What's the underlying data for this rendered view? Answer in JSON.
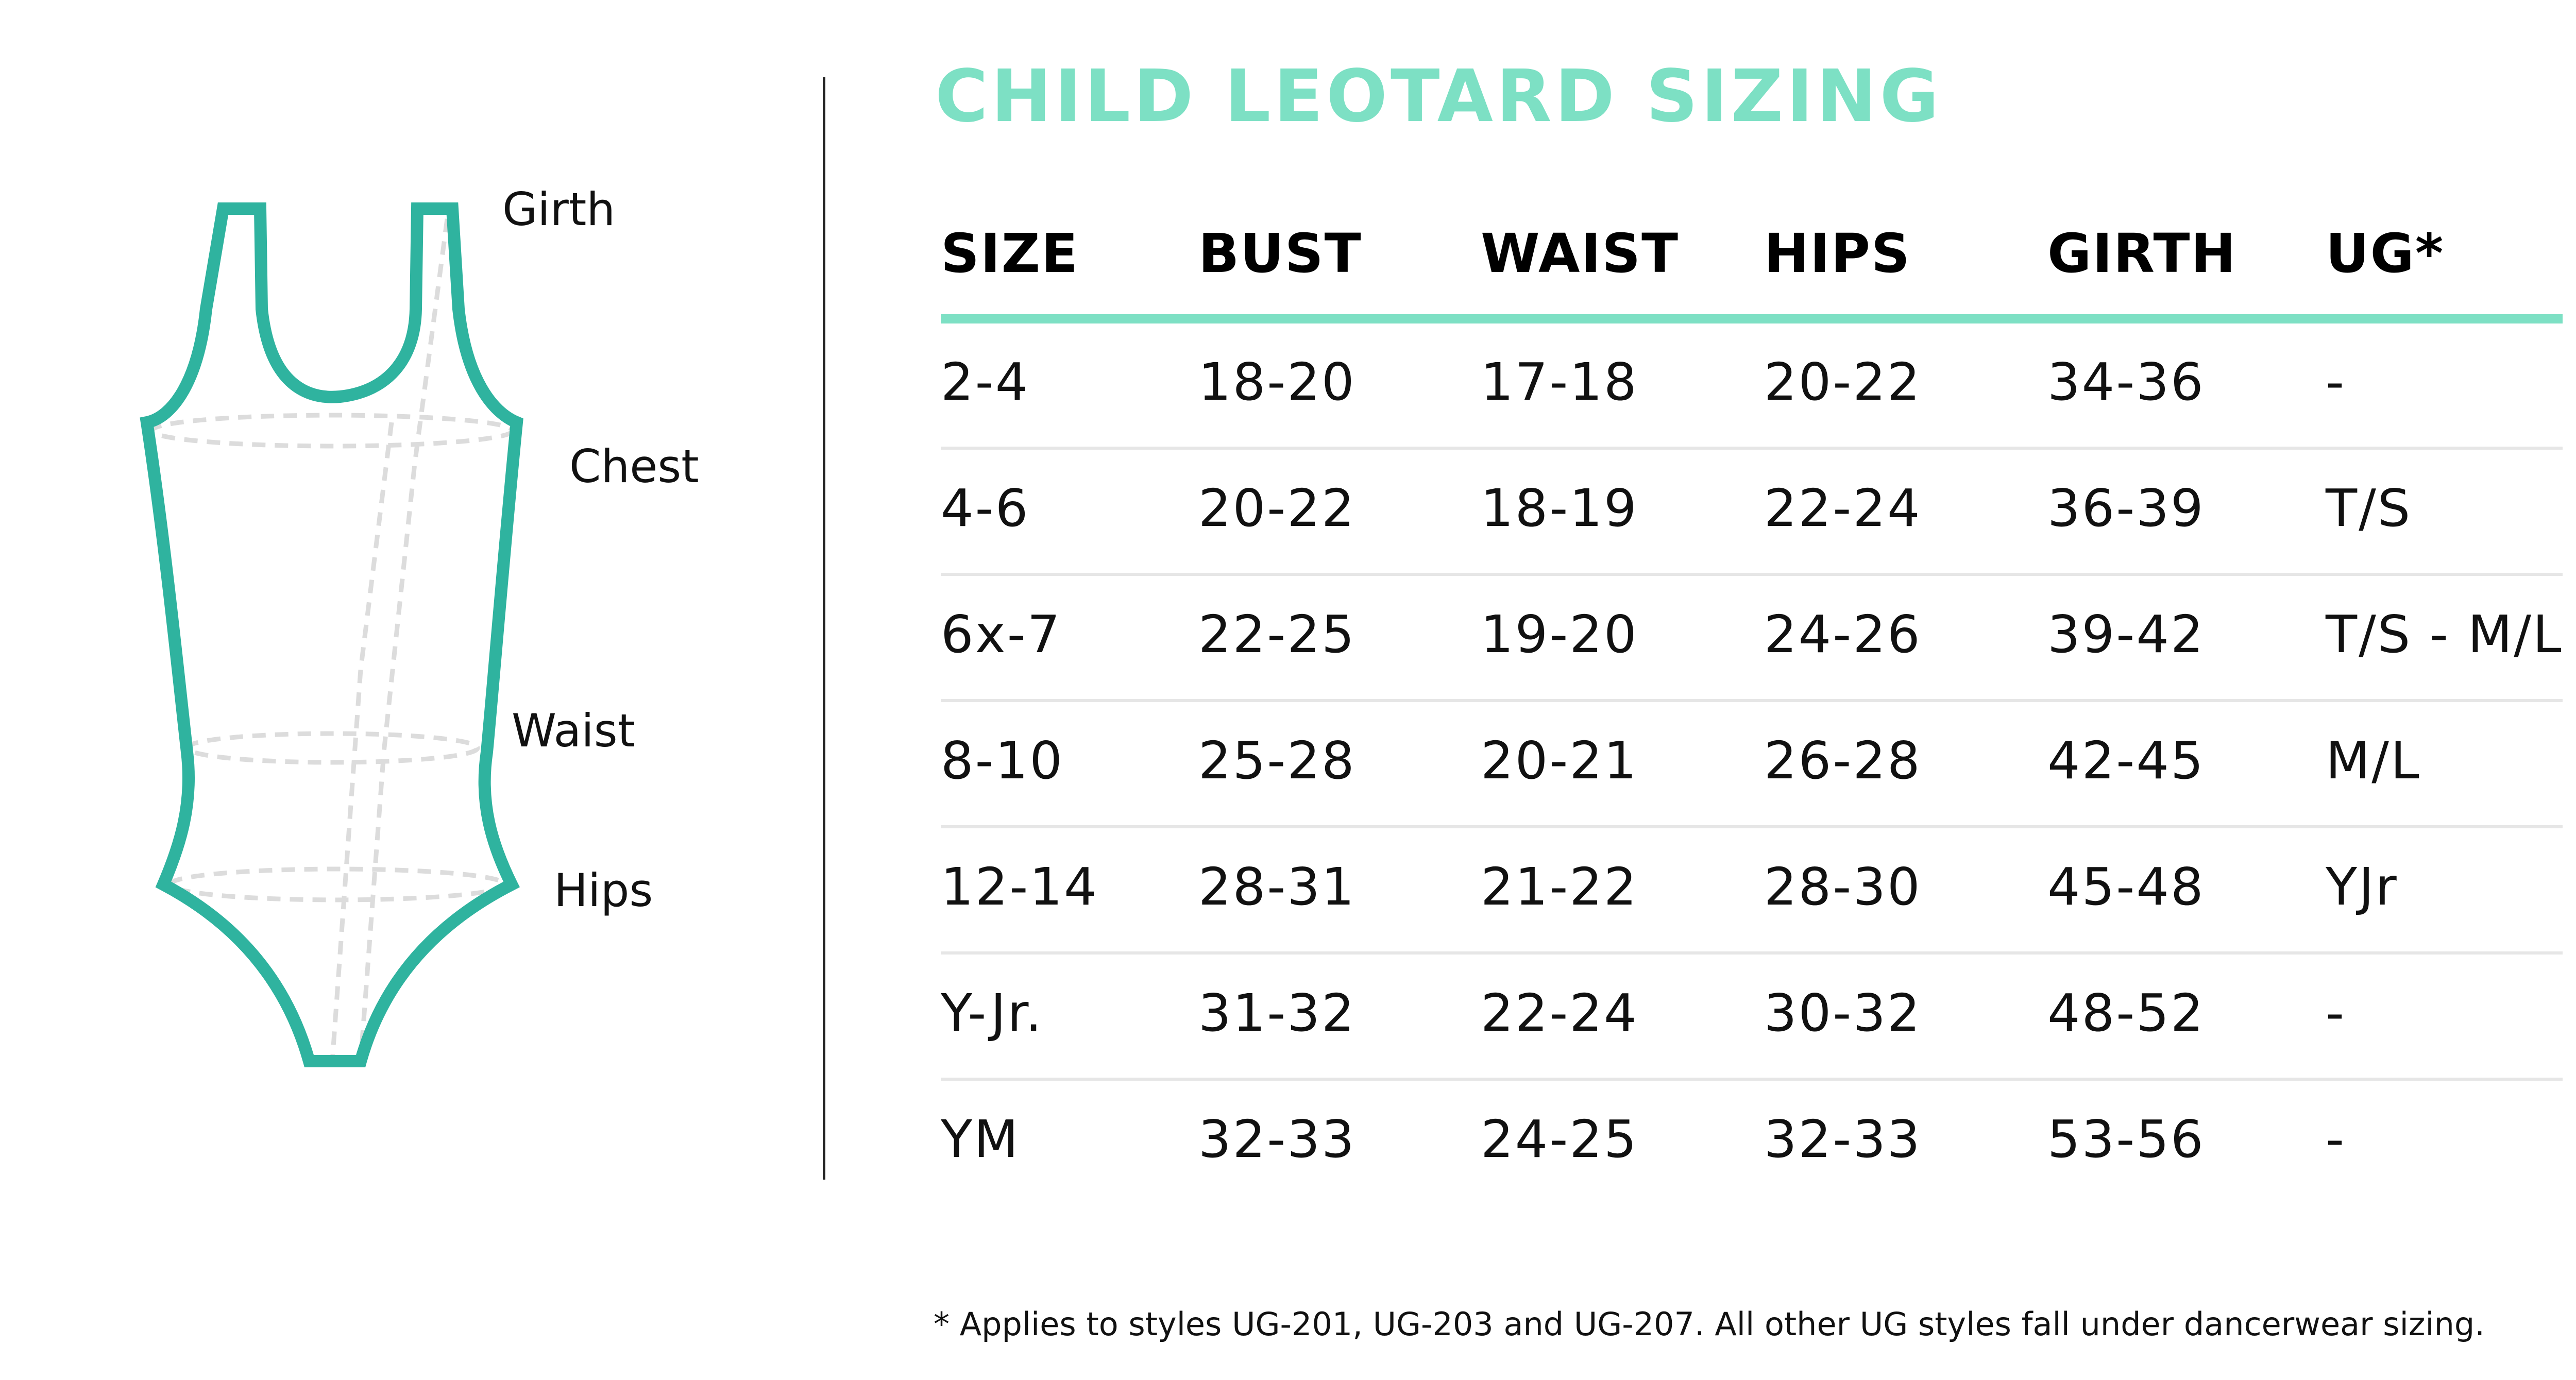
{
  "diagram": {
    "labels": {
      "girth": "Girth",
      "chest": "Chest",
      "waist": "Waist",
      "hips": "Hips"
    },
    "outline_color": "#2fb39f",
    "guide_color": "#dcdcdc"
  },
  "title": "CHILD LEOTARD SIZING",
  "accent_color": "#7de0c4",
  "table": {
    "headers": [
      "SIZE",
      "BUST",
      "WAIST",
      "HIPS",
      "GIRTH",
      "UG*"
    ],
    "rows": [
      [
        "2-4",
        "18-20",
        "17-18",
        "20-22",
        "34-36",
        "-"
      ],
      [
        "4-6",
        "20-22",
        "18-19",
        "22-24",
        "36-39",
        "T/S"
      ],
      [
        "6x-7",
        "22-25",
        "19-20",
        "24-26",
        "39-42",
        "T/S - M/L"
      ],
      [
        "8-10",
        "25-28",
        "20-21",
        "26-28",
        "42-45",
        "M/L"
      ],
      [
        "12-14",
        "28-31",
        "21-22",
        "28-30",
        "45-48",
        "YJr"
      ],
      [
        "Y-Jr.",
        "31-32",
        "22-24",
        "30-32",
        "48-52",
        "-"
      ],
      [
        "YM",
        "32-33",
        "24-25",
        "32-33",
        "53-56",
        "-"
      ]
    ]
  },
  "footnote": "* Applies to styles UG-201, UG-203 and UG-207. All other UG styles fall under dancerwear sizing."
}
